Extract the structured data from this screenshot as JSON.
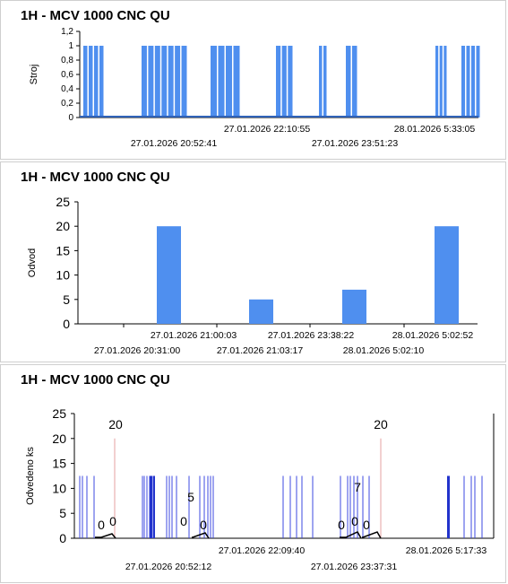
{
  "chart_data": [
    {
      "type": "bar",
      "title": "1H - MCV 1000 CNC QU",
      "xlabel": "",
      "ylabel": "Stroj",
      "ylim": [
        0,
        1.2
      ],
      "yticks": [
        "1,2",
        "1",
        "0,8",
        "0,6",
        "0,4",
        "0,2",
        "0"
      ],
      "xtick_labels_top": [
        "27.01.2026 22:10:55",
        "28.01.2026 5:33:05"
      ],
      "xtick_labels_bottom": [
        "27.01.2026 20:52:41",
        "27.01.2026 23:51:23"
      ],
      "series_color": "#4f8fef",
      "pulse_groups": [
        {
          "value": 1,
          "pulses": 4
        },
        {
          "value": 1,
          "pulses": 7
        },
        {
          "value": 1,
          "pulses": 4
        },
        {
          "value": 1,
          "pulses": 3
        },
        {
          "value": 1,
          "pulses": 2
        },
        {
          "value": 1,
          "pulses": 2
        },
        {
          "value": 1,
          "pulses": 3
        },
        {
          "value": 1,
          "pulses": 4
        }
      ],
      "grid": false
    },
    {
      "type": "bar",
      "title": "1H - MCV 1000 CNC QU",
      "xlabel": "",
      "ylabel": "Odvod",
      "ylim": [
        0,
        25
      ],
      "yticks": [
        "25",
        "20",
        "15",
        "10",
        "5",
        "0"
      ],
      "xtick_labels_top": [
        "27.01.2026 21:00:03",
        "27.01.2026 23:38:22",
        "28.01.2026 5:02:52"
      ],
      "xtick_labels_bottom": [
        "27.01.2026 20:31:00",
        "27.01.2026 21:03:17",
        "28.01.2026 5:02:10"
      ],
      "values": [
        20,
        5,
        7,
        20
      ],
      "series_color": "#4f8fef",
      "grid": false
    },
    {
      "type": "line",
      "title": "1H - MCV 1000 CNC QU",
      "xlabel": "",
      "ylabel": "Odvedeno ks",
      "ylim": [
        0,
        25
      ],
      "yticks": [
        "25",
        "20",
        "15",
        "10",
        "5",
        "0"
      ],
      "xtick_labels_top": [
        "27.01.2026 22:09:40",
        "28.01.2026 5:17:33"
      ],
      "xtick_labels_bottom": [
        "27.01.2026 20:52:12",
        "27.01.2026 23:37:31"
      ],
      "annotations": [
        "20",
        "5",
        "7",
        "20",
        "0",
        "0",
        "0",
        "0",
        "0",
        "0",
        "0"
      ],
      "peaks": [
        20,
        20
      ],
      "series_color": "#3d48e0",
      "grid": false
    }
  ]
}
